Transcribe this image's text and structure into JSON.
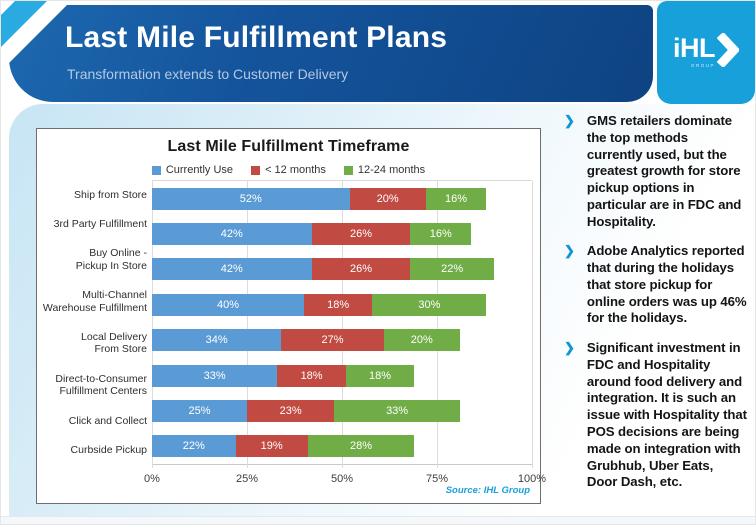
{
  "header": {
    "title": "Last Mile Fulfillment Plans",
    "subtitle": "Transformation extends to Customer Delivery",
    "logo": {
      "text": "iHL",
      "sub": "GROUP"
    }
  },
  "chart_data": {
    "type": "bar",
    "orientation": "horizontal",
    "stacked": true,
    "title": "Last Mile Fulfillment Timeframe",
    "categories": [
      "Ship from Store",
      "3rd Party Fulfillment",
      "Buy Online -\nPickup In Store",
      "Multi-Channel\nWarehouse Fulfillment",
      "Local Delivery\nFrom Store",
      "Direct-to-Consumer\nFulfillment Centers",
      "Click and Collect",
      "Curbside Pickup"
    ],
    "series": [
      {
        "name": "Currently Use",
        "color": "#5B9BD5",
        "values": [
          52,
          42,
          42,
          40,
          34,
          33,
          25,
          22
        ]
      },
      {
        "name": "< 12 months",
        "color": "#C14B42",
        "values": [
          20,
          26,
          26,
          18,
          27,
          18,
          23,
          19
        ]
      },
      {
        "name": "12-24 months",
        "color": "#70AD47",
        "values": [
          16,
          16,
          22,
          30,
          20,
          18,
          33,
          28
        ]
      }
    ],
    "xlim": [
      0,
      100
    ],
    "x_ticks": [
      "0%",
      "25%",
      "50%",
      "75%",
      "100%"
    ],
    "grid": true,
    "legend_position": "top",
    "source": "Source: IHL Group"
  },
  "sidebar": {
    "bullets": [
      "GMS retailers dominate the top methods currently used, but the greatest growth for store pickup options in particular are in FDC and Hospitality.",
      "Adobe Analytics reported that during the holidays that store pickup for online orders was up 46% for the holidays.",
      "Significant investment in FDC and Hospitality around food delivery and integration.  It is such an issue with Hospitality that POS decisions are being made on integration with Grubhub, Uber Eats, Door Dash, etc."
    ]
  },
  "colors": {
    "header_navy": "#14539B",
    "accent_light_blue": "#18A0DB",
    "corner_stripe": "#29ABE2",
    "bar_blue": "#5B9BD5",
    "bar_red": "#C14B42",
    "bar_green": "#70AD47"
  }
}
